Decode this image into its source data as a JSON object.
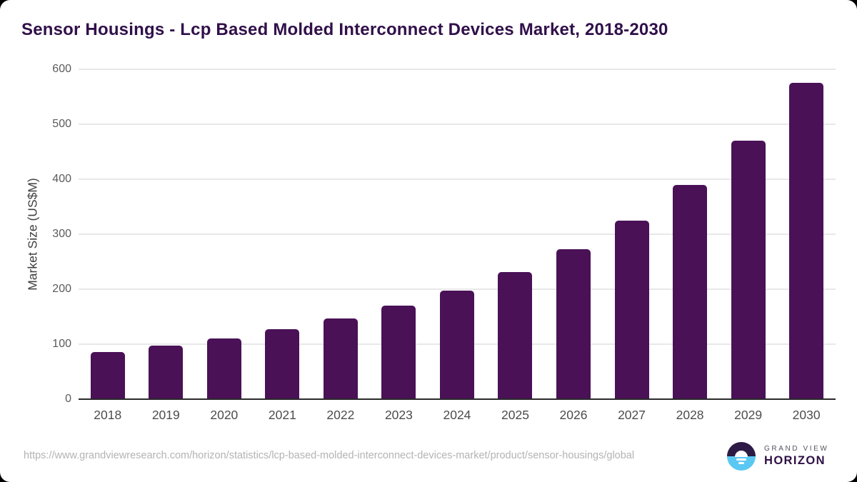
{
  "title": "Sensor Housings - Lcp Based Molded Interconnect Devices Market, 2018-2030",
  "source": {
    "url": "https://www.grandviewresearch.com/horizon/statistics/lcp-based-molded-interconnect-devices-market/product/sensor-housings/global"
  },
  "branding": {
    "line1": "GRAND VIEW",
    "line2": "HORIZON",
    "logo_icon": "horizon-sunrise-circle"
  },
  "colors": {
    "bar": "#4a1157",
    "title": "#31104a",
    "gridline": "#e8e8e8",
    "axis_line": "#2b2b2b",
    "tick_label": "#5b5b5b",
    "x_label": "#4c4c4c",
    "y_axis_title": "#3f3f3f",
    "source_url": "#b3b3b3",
    "logo_dark": "#2d1a45",
    "logo_blue": "#5bc8f3"
  },
  "chart_data": {
    "type": "bar",
    "title": "Sensor Housings - Lcp Based Molded Interconnect Devices Market, 2018-2030",
    "categories": [
      "2018",
      "2019",
      "2020",
      "2021",
      "2022",
      "2023",
      "2024",
      "2025",
      "2026",
      "2027",
      "2028",
      "2029",
      "2030"
    ],
    "values": [
      86,
      97,
      111,
      127,
      147,
      170,
      198,
      231,
      273,
      325,
      390,
      470,
      575
    ],
    "xlabel": "",
    "ylabel": "Market Size (US$M)",
    "ylim": [
      0,
      600
    ],
    "yticks": [
      0,
      100,
      200,
      300,
      400,
      500,
      600
    ],
    "grid": true,
    "legend": false,
    "series_name": "Market Size (US$M)"
  }
}
